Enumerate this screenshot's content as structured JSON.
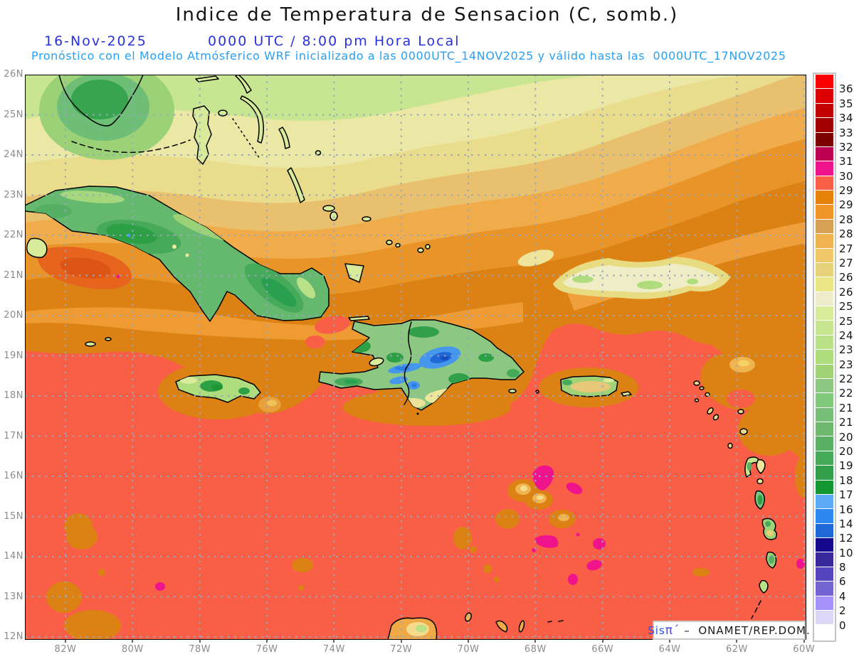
{
  "header": {
    "title": "Indice de Temperatura de Sensacion (C, somb.)",
    "date": "16-Nov-2025",
    "time": "0000 UTC / 8:00 pm Hora Local",
    "forecast_line": "Pronóstico con el Modelo Atmósferico WRF inicializado a las 0000UTC_14NOV2025 y válido hasta las  0000UTC_17NOV2025"
  },
  "map": {
    "lat_labels": [
      "26N",
      "25N",
      "24N",
      "23N",
      "22N",
      "21N",
      "20N",
      "19N",
      "18N",
      "17N",
      "16N",
      "15N",
      "14N",
      "13N",
      "12N"
    ],
    "lon_labels": [
      "82W",
      "80W",
      "78W",
      "76W",
      "74W",
      "72W",
      "70W",
      "68W",
      "66W",
      "64W",
      "62W",
      "60W"
    ],
    "attribution": {
      "sis": "Sis",
      "pi": "π´",
      "rest": " –  ONAMET/REP.DOM."
    }
  },
  "colorbar": {
    "boxes": [
      {
        "color": "#FB0000",
        "label": "36"
      },
      {
        "color": "#DC0000",
        "label": "35"
      },
      {
        "color": "#C30000",
        "label": "34"
      },
      {
        "color": "#A00000",
        "label": "33"
      },
      {
        "color": "#7D0000",
        "label": "32"
      },
      {
        "color": "#BE0050",
        "label": "31.5"
      },
      {
        "color": "#F0148C",
        "label": "30.7"
      },
      {
        "color": "#F85F46",
        "label": "29.7"
      },
      {
        "color": "#E6820A",
        "label": "29"
      },
      {
        "color": "#F09628",
        "label": "28.5"
      },
      {
        "color": "#D7A054",
        "label": "28"
      },
      {
        "color": "#EFB450",
        "label": "27.5"
      },
      {
        "color": "#F0C868",
        "label": "27"
      },
      {
        "color": "#E6D278",
        "label": "26.5"
      },
      {
        "color": "#EBE787",
        "label": "26"
      },
      {
        "color": "#EEEDCB",
        "label": "25.5"
      },
      {
        "color": "#D7EB9B",
        "label": "25"
      },
      {
        "color": "#C8E691",
        "label": "24"
      },
      {
        "color": "#B9E187",
        "label": "23.5"
      },
      {
        "color": "#AFDC7D",
        "label": "23"
      },
      {
        "color": "#A0D278",
        "label": "22.5"
      },
      {
        "color": "#8CC882",
        "label": "22"
      },
      {
        "color": "#82C87D",
        "label": "21.5"
      },
      {
        "color": "#78BE78",
        "label": "21"
      },
      {
        "color": "#6EB96E",
        "label": "20.5"
      },
      {
        "color": "#5AAF64",
        "label": "20"
      },
      {
        "color": "#46AA5A",
        "label": "19"
      },
      {
        "color": "#32A04B",
        "label": "18"
      },
      {
        "color": "#149632",
        "label": "17"
      },
      {
        "color": "#5AAAF5",
        "label": "16"
      },
      {
        "color": "#2D87F0",
        "label": "14"
      },
      {
        "color": "#1E69D7",
        "label": "12"
      },
      {
        "color": "#14088C",
        "label": "10"
      },
      {
        "color": "#37289B",
        "label": "8"
      },
      {
        "color": "#5546BE",
        "label": "6"
      },
      {
        "color": "#7364D2",
        "label": "4"
      },
      {
        "color": "#A591FA",
        "label": "2"
      },
      {
        "color": "#DCD7F7",
        "label": "0"
      },
      {
        "color": "#FFFFFF",
        "label": null
      }
    ]
  },
  "palette": {
    "title": "#141414",
    "date_blue": "#2832DC",
    "forecast_cyan": "#28A0F5",
    "axis_gray": "#8C8C8C",
    "label_dark": "#141414",
    "sea_coral": "#F85F46",
    "sea_orange_dark": "#DC8214",
    "sea_orange": "#E89428",
    "sea_orange_light": "#F0AC4B",
    "band_tan": "#E9C16E",
    "band_khaki": "#E9DC8C",
    "band_paleyellow": "#EAE8A4",
    "band_green": "#C8E691",
    "magenta": "#F0148C",
    "land_green": "#8CC882",
    "land_green_dark": "#2DA046",
    "mountain_blue": "#4696EB",
    "mountain_blue_dark": "#1E69D7",
    "cream": "#EEEDC6"
  }
}
